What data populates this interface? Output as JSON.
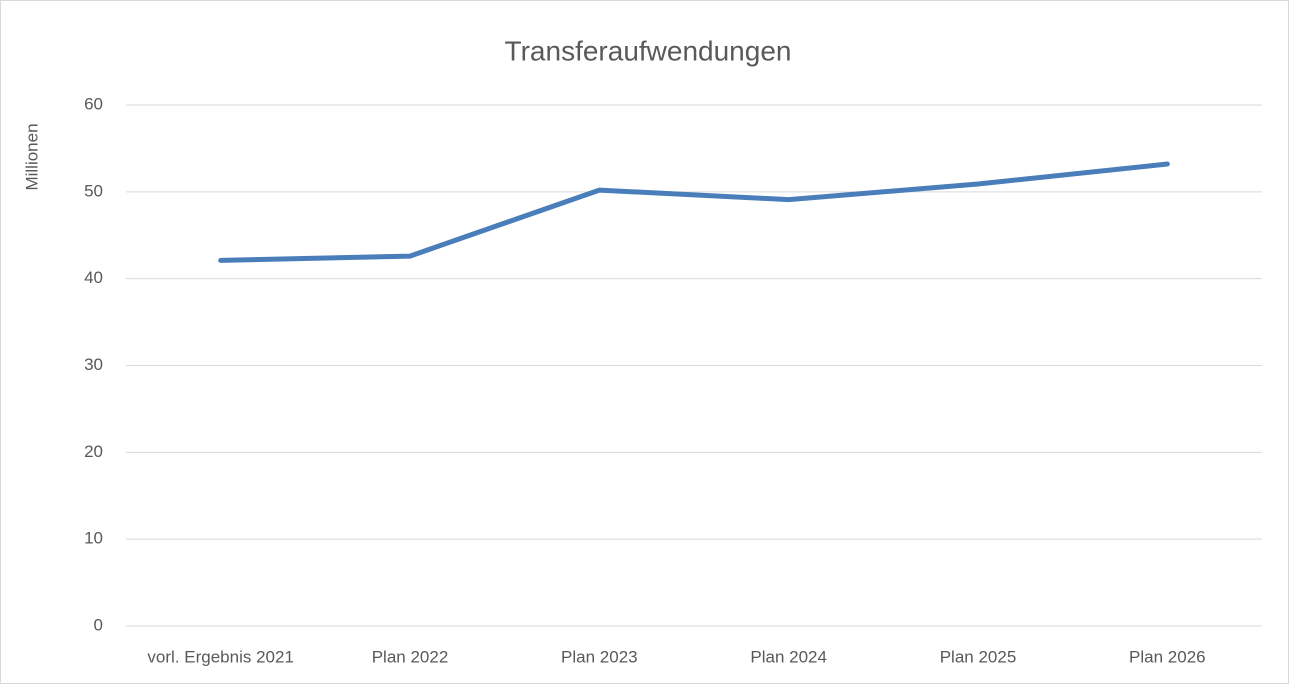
{
  "chart_data": {
    "type": "line",
    "title": "Transferaufwendungen",
    "y_label": "Millionen",
    "categories": [
      "vorl. Ergebnis 2021",
      "Plan 2022",
      "Plan 2023",
      "Plan 2024",
      "Plan 2025",
      "Plan 2026"
    ],
    "values": [
      42.1,
      42.6,
      50.2,
      49.1,
      50.9,
      53.2
    ],
    "color": "#4a7ebb",
    "ylim": [
      0,
      60
    ],
    "yticks": [
      0,
      10,
      20,
      30,
      40,
      50,
      60
    ],
    "grid": true
  }
}
